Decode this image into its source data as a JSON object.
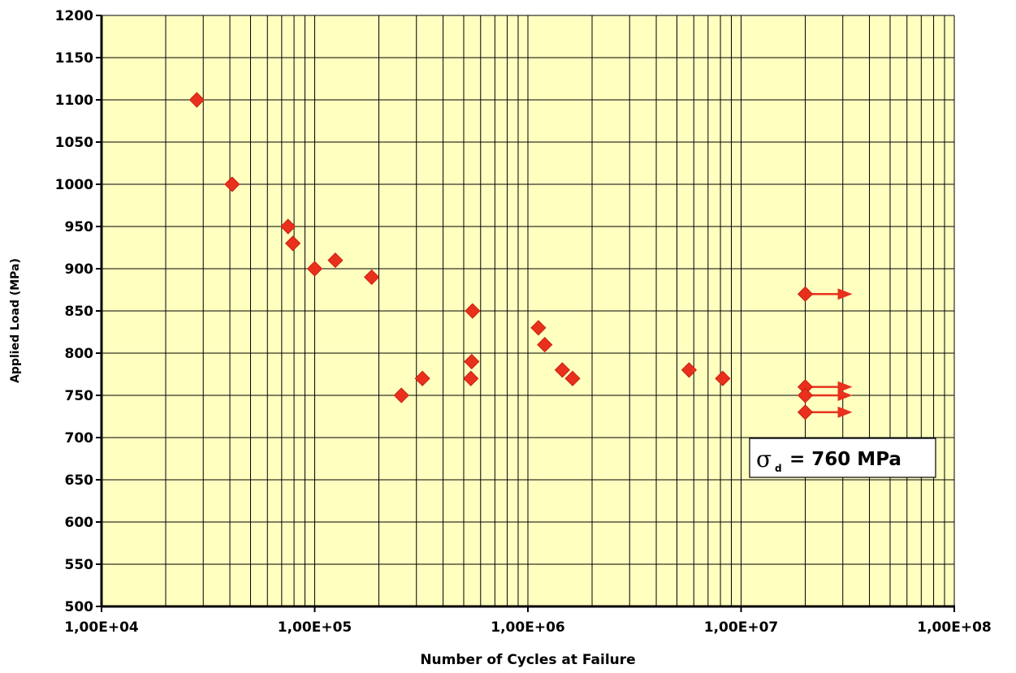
{
  "chart_data": {
    "type": "scatter",
    "xlabel": "Number of Cycles at Failure",
    "ylabel": "Applied Load (MPa)",
    "xscale": "log",
    "xlim": [
      10000,
      100000000
    ],
    "ylim": [
      500,
      1200
    ],
    "x_tick_labels": [
      "1,00E+04",
      "1,00E+05",
      "1,00E+06",
      "1,00E+07",
      "1,00E+08"
    ],
    "y_ticks": [
      500,
      550,
      600,
      650,
      700,
      750,
      800,
      850,
      900,
      950,
      1000,
      1050,
      1100,
      1150,
      1200
    ],
    "grid": true,
    "plot_background": "#FFFFC0",
    "marker_color": "#E8301C",
    "marker": "diamond",
    "points": [
      {
        "x": 28000,
        "y": 1100
      },
      {
        "x": 41000,
        "y": 1000
      },
      {
        "x": 75000,
        "y": 950
      },
      {
        "x": 79000,
        "y": 930
      },
      {
        "x": 100000,
        "y": 900
      },
      {
        "x": 125000,
        "y": 910
      },
      {
        "x": 185000,
        "y": 890
      },
      {
        "x": 255000,
        "y": 750
      },
      {
        "x": 320000,
        "y": 770
      },
      {
        "x": 550000,
        "y": 850
      },
      {
        "x": 545000,
        "y": 790
      },
      {
        "x": 540000,
        "y": 770
      },
      {
        "x": 1120000,
        "y": 830
      },
      {
        "x": 1200000,
        "y": 810
      },
      {
        "x": 1450000,
        "y": 780
      },
      {
        "x": 1620000,
        "y": 770
      },
      {
        "x": 5700000,
        "y": 780
      },
      {
        "x": 8200000,
        "y": 770
      }
    ],
    "runouts": [
      {
        "x": 20000000,
        "y": 870
      },
      {
        "x": 20000000,
        "y": 760
      },
      {
        "x": 20000000,
        "y": 750
      },
      {
        "x": 20000000,
        "y": 730
      }
    ],
    "annotation": {
      "symbol": "σ",
      "subscript": "d",
      "text": " = 760 MPa"
    }
  }
}
